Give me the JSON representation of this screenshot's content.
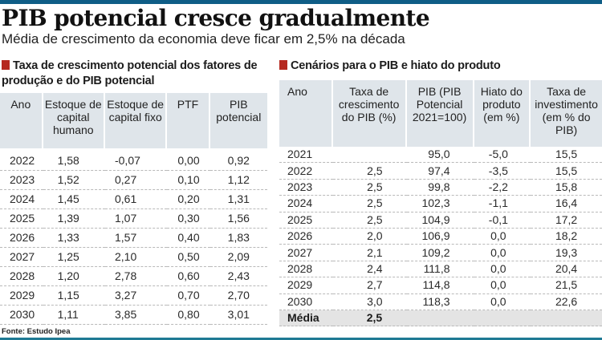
{
  "header": {
    "title": "PIB potencial cresce gradualmente",
    "subtitle": "Média de crescimento da economia deve ficar em 2,5% na década"
  },
  "colors": {
    "top_bar": "#0f5d86",
    "accent_square": "#b5281f",
    "header_bg": "#dfe5ea",
    "avg_row_bg": "#e4e4e4"
  },
  "table1": {
    "title_line1": "Taxa de crescimento potencial dos fatores de",
    "title_line2": "produção e do PIB potencial",
    "headers": [
      "Ano",
      "Estoque de capital humano",
      "Estoque de capital fixo",
      "PTF",
      "PIB potencial"
    ],
    "rows": [
      [
        "2022",
        "1,58",
        "-0,07",
        "0,00",
        "0,92"
      ],
      [
        "2023",
        "1,52",
        "0,27",
        "0,10",
        "1,12"
      ],
      [
        "2024",
        "1,45",
        "0,61",
        "0,20",
        "1,31"
      ],
      [
        "2025",
        "1,39",
        "1,07",
        "0,30",
        "1,56"
      ],
      [
        "2026",
        "1,33",
        "1,57",
        "0,40",
        "1,83"
      ],
      [
        "2027",
        "1,25",
        "2,10",
        "0,50",
        "2,09"
      ],
      [
        "2028",
        "1,20",
        "2,78",
        "0,60",
        "2,43"
      ],
      [
        "2029",
        "1,15",
        "3,27",
        "0,70",
        "2,70"
      ],
      [
        "2030",
        "1,11",
        "3,85",
        "0,80",
        "3,01"
      ]
    ]
  },
  "table2": {
    "title": "Cenários para o PIB e hiato do produto",
    "headers": [
      "Ano",
      "Taxa de crescimento do PIB (%)",
      "PIB (PIB Potencial 2021=100)",
      "Hiato do produto (em %)",
      "Taxa de investimento (em % do PIB)"
    ],
    "rows": [
      [
        "2021",
        "",
        "95,0",
        "-5,0",
        "15,5"
      ],
      [
        "2022",
        "2,5",
        "97,4",
        "-3,5",
        "15,5"
      ],
      [
        "2023",
        "2,5",
        "99,8",
        "-2,2",
        "15,8"
      ],
      [
        "2024",
        "2,5",
        "102,3",
        "-1,1",
        "16,4"
      ],
      [
        "2025",
        "2,5",
        "104,9",
        "-0,1",
        "17,2"
      ],
      [
        "2026",
        "2,0",
        "106,9",
        "0,0",
        "18,2"
      ],
      [
        "2027",
        "2,1",
        "109,2",
        "0,0",
        "19,3"
      ],
      [
        "2028",
        "2,4",
        "111,8",
        "0,0",
        "20,4"
      ],
      [
        "2029",
        "2,7",
        "114,8",
        "0,0",
        "21,5"
      ],
      [
        "2030",
        "3,0",
        "118,3",
        "0,0",
        "22,6"
      ]
    ],
    "average": {
      "label": "Média",
      "value": "2,5"
    }
  },
  "footer": {
    "source": "Fonte: Estudo Ipea"
  }
}
